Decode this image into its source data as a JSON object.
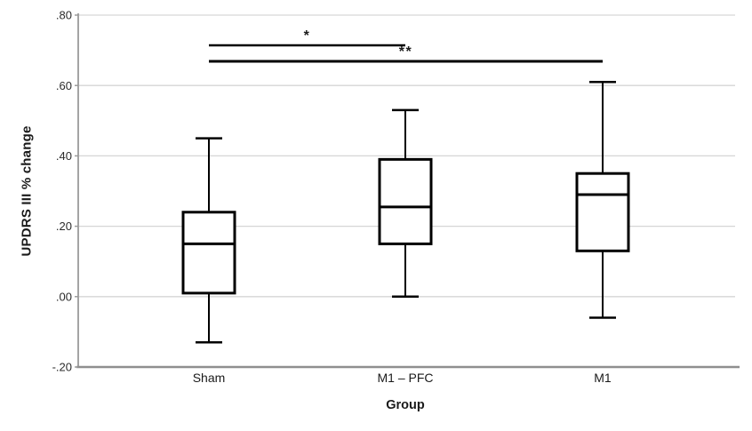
{
  "chart_data": {
    "type": "boxplot",
    "title": "",
    "xlabel": "Group",
    "ylabel": "UPDRS III % change",
    "categories": [
      "Sham",
      "M1 – PFC",
      "M1"
    ],
    "ylim": [
      -0.2,
      0.8
    ],
    "ytick_values": [
      0.8,
      0.6,
      0.4,
      0.2,
      0.0,
      -0.2
    ],
    "ytick_labels": [
      ".80",
      ".60",
      ".40",
      ".20",
      ".00",
      "-.20"
    ],
    "grid": "horizontal-light-gray",
    "legend": "none",
    "boxes": [
      {
        "category": "Sham",
        "whisker_low": -0.13,
        "q1": 0.01,
        "median": 0.15,
        "q3": 0.24,
        "whisker_high": 0.45
      },
      {
        "category": "M1 – PFC",
        "whisker_low": 0.0,
        "q1": 0.15,
        "median": 0.255,
        "q3": 0.39,
        "whisker_high": 0.53
      },
      {
        "category": "M1",
        "whisker_low": -0.06,
        "q1": 0.13,
        "median": 0.29,
        "q3": 0.35,
        "whisker_high": 0.61
      }
    ],
    "significance": [
      {
        "group_a": "Sham",
        "group_b": "M1 – PFC",
        "label": "*"
      },
      {
        "group_a": "Sham",
        "group_b": "M1",
        "label": "**"
      }
    ]
  },
  "colors": {
    "background": "#ffffff",
    "box_stroke": "#000000",
    "box_fill": "#ffffff",
    "grid_line": "#d6d6d6",
    "axis_line": "#9a9a9a",
    "x_axis_line": "#8f8f8f",
    "text": "#1a1a1a",
    "tick_text": "#2b2b2b"
  }
}
